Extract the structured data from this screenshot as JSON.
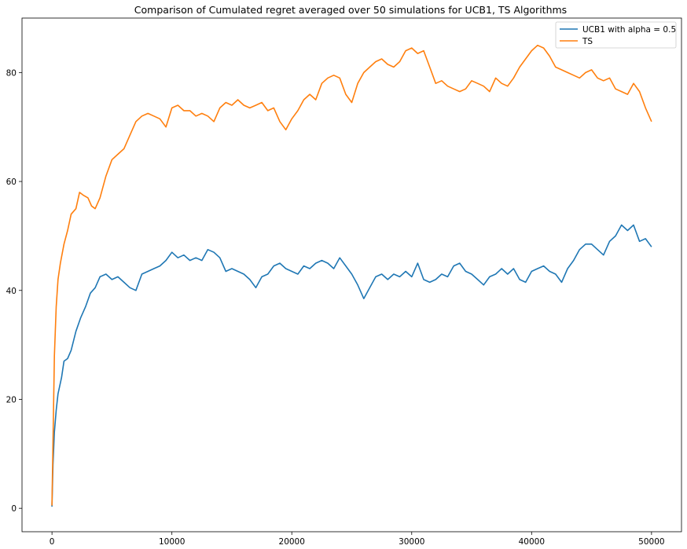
{
  "chart_data": {
    "type": "line",
    "title": "Comparison of Cumulated regret averaged over 50 simulations for UCB1, TS Algorithms",
    "xlabel": "",
    "ylabel": "",
    "xlim": [
      -2500,
      52500
    ],
    "ylim": [
      -4.3,
      90
    ],
    "xticks": [
      0,
      10000,
      20000,
      30000,
      40000,
      50000
    ],
    "yticks": [
      0,
      20,
      40,
      60,
      80
    ],
    "grid": false,
    "legend_position": "top-right",
    "series": [
      {
        "name": "UCB1 with alpha = 0.5",
        "color": "#1f77b4",
        "points": [
          [
            0,
            0.3
          ],
          [
            80,
            8
          ],
          [
            200,
            14
          ],
          [
            350,
            18
          ],
          [
            500,
            21
          ],
          [
            800,
            24
          ],
          [
            1000,
            27
          ],
          [
            1300,
            27.5
          ],
          [
            1600,
            29
          ],
          [
            2000,
            32.5
          ],
          [
            2400,
            35
          ],
          [
            2800,
            37
          ],
          [
            3200,
            39.5
          ],
          [
            3600,
            40.5
          ],
          [
            4000,
            42.5
          ],
          [
            4500,
            43
          ],
          [
            5000,
            42
          ],
          [
            5500,
            42.5
          ],
          [
            6000,
            41.5
          ],
          [
            6500,
            40.5
          ],
          [
            7000,
            40
          ],
          [
            7500,
            43
          ],
          [
            8000,
            43.5
          ],
          [
            8500,
            44
          ],
          [
            9000,
            44.5
          ],
          [
            9500,
            45.5
          ],
          [
            10000,
            47
          ],
          [
            10500,
            46
          ],
          [
            11000,
            46.5
          ],
          [
            11500,
            45.5
          ],
          [
            12000,
            46
          ],
          [
            12500,
            45.5
          ],
          [
            13000,
            47.5
          ],
          [
            13500,
            47
          ],
          [
            14000,
            46
          ],
          [
            14500,
            43.5
          ],
          [
            15000,
            44
          ],
          [
            15500,
            43.5
          ],
          [
            16000,
            43
          ],
          [
            16500,
            42
          ],
          [
            17000,
            40.5
          ],
          [
            17500,
            42.5
          ],
          [
            18000,
            43
          ],
          [
            18500,
            44.5
          ],
          [
            19000,
            45
          ],
          [
            19500,
            44
          ],
          [
            20000,
            43.5
          ],
          [
            20500,
            43
          ],
          [
            21000,
            44.5
          ],
          [
            21500,
            44
          ],
          [
            22000,
            45
          ],
          [
            22500,
            45.5
          ],
          [
            23000,
            45
          ],
          [
            23500,
            44
          ],
          [
            24000,
            46
          ],
          [
            24500,
            44.5
          ],
          [
            25000,
            43
          ],
          [
            25500,
            41
          ],
          [
            26000,
            38.5
          ],
          [
            26500,
            40.5
          ],
          [
            27000,
            42.5
          ],
          [
            27500,
            43
          ],
          [
            28000,
            42
          ],
          [
            28500,
            43
          ],
          [
            29000,
            42.5
          ],
          [
            29500,
            43.5
          ],
          [
            30000,
            42.5
          ],
          [
            30500,
            45
          ],
          [
            31000,
            42
          ],
          [
            31500,
            41.5
          ],
          [
            32000,
            42
          ],
          [
            32500,
            43
          ],
          [
            33000,
            42.5
          ],
          [
            33500,
            44.5
          ],
          [
            34000,
            45
          ],
          [
            34500,
            43.5
          ],
          [
            35000,
            43
          ],
          [
            35500,
            42
          ],
          [
            36000,
            41
          ],
          [
            36500,
            42.5
          ],
          [
            37000,
            43
          ],
          [
            37500,
            44
          ],
          [
            38000,
            43
          ],
          [
            38500,
            44
          ],
          [
            39000,
            42
          ],
          [
            39500,
            41.5
          ],
          [
            40000,
            43.5
          ],
          [
            40500,
            44
          ],
          [
            41000,
            44.5
          ],
          [
            41500,
            43.5
          ],
          [
            42000,
            43
          ],
          [
            42500,
            41.5
          ],
          [
            43000,
            44
          ],
          [
            43500,
            45.5
          ],
          [
            44000,
            47.5
          ],
          [
            44500,
            48.5
          ],
          [
            45000,
            48.5
          ],
          [
            45500,
            47.5
          ],
          [
            46000,
            46.5
          ],
          [
            46500,
            49
          ],
          [
            47000,
            50
          ],
          [
            47500,
            52
          ],
          [
            48000,
            51
          ],
          [
            48500,
            52
          ],
          [
            49000,
            49
          ],
          [
            49500,
            49.5
          ],
          [
            50000,
            48
          ]
        ]
      },
      {
        "name": "TS",
        "color": "#ff7f0e",
        "points": [
          [
            0,
            0.5
          ],
          [
            80,
            12
          ],
          [
            200,
            28
          ],
          [
            350,
            37
          ],
          [
            500,
            42
          ],
          [
            700,
            45
          ],
          [
            1000,
            48.5
          ],
          [
            1300,
            51
          ],
          [
            1600,
            54
          ],
          [
            2000,
            55
          ],
          [
            2300,
            58
          ],
          [
            2600,
            57.5
          ],
          [
            3000,
            57
          ],
          [
            3300,
            55.5
          ],
          [
            3600,
            55
          ],
          [
            4000,
            57
          ],
          [
            4500,
            61
          ],
          [
            5000,
            64
          ],
          [
            5500,
            65
          ],
          [
            6000,
            66
          ],
          [
            6500,
            68.5
          ],
          [
            7000,
            71
          ],
          [
            7500,
            72
          ],
          [
            8000,
            72.5
          ],
          [
            8500,
            72
          ],
          [
            9000,
            71.5
          ],
          [
            9500,
            70
          ],
          [
            10000,
            73.5
          ],
          [
            10500,
            74
          ],
          [
            11000,
            73
          ],
          [
            11500,
            73
          ],
          [
            12000,
            72
          ],
          [
            12500,
            72.5
          ],
          [
            13000,
            72
          ],
          [
            13500,
            71
          ],
          [
            14000,
            73.5
          ],
          [
            14500,
            74.5
          ],
          [
            15000,
            74
          ],
          [
            15500,
            75
          ],
          [
            16000,
            74
          ],
          [
            16500,
            73.5
          ],
          [
            17000,
            74
          ],
          [
            17500,
            74.5
          ],
          [
            18000,
            73
          ],
          [
            18500,
            73.5
          ],
          [
            19000,
            71
          ],
          [
            19500,
            69.5
          ],
          [
            20000,
            71.5
          ],
          [
            20500,
            73
          ],
          [
            21000,
            75
          ],
          [
            21500,
            76
          ],
          [
            22000,
            75
          ],
          [
            22500,
            78
          ],
          [
            23000,
            79
          ],
          [
            23500,
            79.5
          ],
          [
            24000,
            79
          ],
          [
            24500,
            76
          ],
          [
            25000,
            74.5
          ],
          [
            25500,
            78
          ],
          [
            26000,
            80
          ],
          [
            26500,
            81
          ],
          [
            27000,
            82
          ],
          [
            27500,
            82.5
          ],
          [
            28000,
            81.5
          ],
          [
            28500,
            81
          ],
          [
            29000,
            82
          ],
          [
            29500,
            84
          ],
          [
            30000,
            84.5
          ],
          [
            30500,
            83.5
          ],
          [
            31000,
            84
          ],
          [
            31500,
            81
          ],
          [
            32000,
            78
          ],
          [
            32500,
            78.5
          ],
          [
            33000,
            77.5
          ],
          [
            33500,
            77
          ],
          [
            34000,
            76.5
          ],
          [
            34500,
            77
          ],
          [
            35000,
            78.5
          ],
          [
            35500,
            78
          ],
          [
            36000,
            77.5
          ],
          [
            36500,
            76.5
          ],
          [
            37000,
            79
          ],
          [
            37500,
            78
          ],
          [
            38000,
            77.5
          ],
          [
            38500,
            79
          ],
          [
            39000,
            81
          ],
          [
            39500,
            82.5
          ],
          [
            40000,
            84
          ],
          [
            40500,
            85
          ],
          [
            41000,
            84.5
          ],
          [
            41500,
            83
          ],
          [
            42000,
            81
          ],
          [
            42500,
            80.5
          ],
          [
            43000,
            80
          ],
          [
            43500,
            79.5
          ],
          [
            44000,
            79
          ],
          [
            44500,
            80
          ],
          [
            45000,
            80.5
          ],
          [
            45500,
            79
          ],
          [
            46000,
            78.5
          ],
          [
            46500,
            79
          ],
          [
            47000,
            77
          ],
          [
            47500,
            76.5
          ],
          [
            48000,
            76
          ],
          [
            48500,
            78
          ],
          [
            49000,
            76.5
          ],
          [
            49500,
            73.5
          ],
          [
            50000,
            71
          ]
        ]
      }
    ]
  }
}
